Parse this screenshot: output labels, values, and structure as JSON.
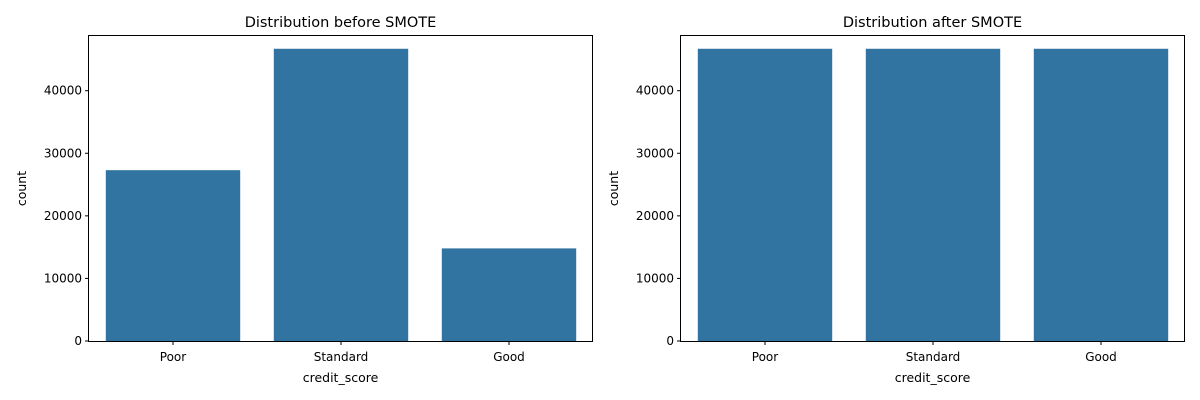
{
  "chart_data": [
    {
      "type": "bar",
      "title": "Distribution before SMOTE",
      "xlabel": "credit_score",
      "ylabel": "count",
      "categories": [
        "Poor",
        "Standard",
        "Good"
      ],
      "values": [
        27300,
        46700,
        14800
      ],
      "ylim": [
        0,
        48900
      ],
      "yticks": [
        0,
        10000,
        20000,
        30000,
        40000
      ],
      "ytick_labels": [
        "0",
        "10000",
        "20000",
        "30000",
        "40000"
      ],
      "grid": false,
      "bar_color": "#3274a1"
    },
    {
      "type": "bar",
      "title": "Distribution after SMOTE",
      "xlabel": "credit_score",
      "ylabel": "count",
      "categories": [
        "Poor",
        "Standard",
        "Good"
      ],
      "values": [
        46700,
        46700,
        46700
      ],
      "ylim": [
        0,
        48900
      ],
      "yticks": [
        0,
        10000,
        20000,
        30000,
        40000
      ],
      "ytick_labels": [
        "0",
        "10000",
        "20000",
        "30000",
        "40000"
      ],
      "grid": false,
      "bar_color": "#3274a1"
    }
  ]
}
